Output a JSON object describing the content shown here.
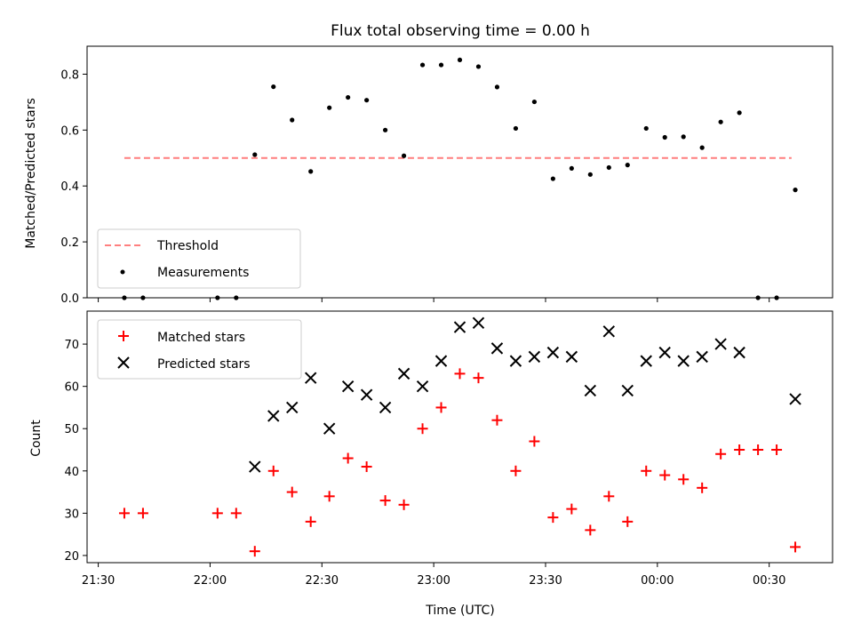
{
  "chart_data": [
    {
      "type": "scatter",
      "title": "Flux total observing time = 0.00 h",
      "xlabel": "",
      "ylabel": "Matched/Predicted stars",
      "ylim": [
        0,
        0.9
      ],
      "yticks": [
        "0.0",
        "0.2",
        "0.4",
        "0.6",
        "0.8"
      ],
      "x_time_range": [
        "21:27",
        "00:47"
      ],
      "legend": {
        "placement": "bottom-left",
        "entries": [
          "Threshold",
          "Measurements"
        ]
      },
      "threshold": {
        "name": "Threshold",
        "value": 0.5,
        "x_start": "21:37",
        "x_end": "00:36",
        "color": "#ff7f7f",
        "style": "dashed"
      },
      "series": [
        {
          "name": "Measurements",
          "color": "#000000",
          "marker": "dot",
          "points": [
            [
              "21:37",
              0.0
            ],
            [
              "21:42",
              0.0
            ],
            [
              "22:02",
              0.0
            ],
            [
              "22:07",
              0.0
            ],
            [
              "22:12",
              0.512
            ],
            [
              "22:17",
              0.755
            ],
            [
              "22:22",
              0.636
            ],
            [
              "22:27",
              0.452
            ],
            [
              "22:32",
              0.68
            ],
            [
              "22:37",
              0.717
            ],
            [
              "22:42",
              0.707
            ],
            [
              "22:47",
              0.6
            ],
            [
              "22:52",
              0.508
            ],
            [
              "22:57",
              0.833
            ],
            [
              "23:02",
              0.833
            ],
            [
              "23:07",
              0.851
            ],
            [
              "23:12",
              0.827
            ],
            [
              "23:17",
              0.754
            ],
            [
              "23:22",
              0.606
            ],
            [
              "23:27",
              0.701
            ],
            [
              "23:32",
              0.426
            ],
            [
              "23:37",
              0.463
            ],
            [
              "23:42",
              0.441
            ],
            [
              "23:47",
              0.466
            ],
            [
              "23:52",
              0.475
            ],
            [
              "23:57",
              0.606
            ],
            [
              "00:02",
              0.574
            ],
            [
              "00:07",
              0.576
            ],
            [
              "00:12",
              0.537
            ],
            [
              "00:17",
              0.629
            ],
            [
              "00:22",
              0.662
            ],
            [
              "00:27",
              0.0
            ],
            [
              "00:32",
              0.0
            ],
            [
              "00:37",
              0.386
            ]
          ]
        }
      ]
    },
    {
      "type": "scatter",
      "title": "",
      "xlabel": "Time (UTC)",
      "ylabel": "Count",
      "ylim": [
        18.3,
        77.8
      ],
      "yticks": [
        "20",
        "30",
        "40",
        "50",
        "60",
        "70"
      ],
      "xticks": [
        "21:30",
        "22:00",
        "22:30",
        "23:00",
        "23:30",
        "00:00",
        "00:30"
      ],
      "x_time_range": [
        "21:27",
        "00:47"
      ],
      "legend": {
        "placement": "top-left",
        "entries": [
          "Matched stars",
          "Predicted stars"
        ]
      },
      "series": [
        {
          "name": "Matched stars",
          "color": "#ff0000",
          "marker": "plus",
          "points": [
            [
              "21:37",
              30
            ],
            [
              "21:42",
              30
            ],
            [
              "22:02",
              30
            ],
            [
              "22:07",
              30
            ],
            [
              "22:12",
              21
            ],
            [
              "22:17",
              40
            ],
            [
              "22:22",
              35
            ],
            [
              "22:27",
              28
            ],
            [
              "22:32",
              34
            ],
            [
              "22:37",
              43
            ],
            [
              "22:42",
              41
            ],
            [
              "22:47",
              33
            ],
            [
              "22:52",
              32
            ],
            [
              "22:57",
              50
            ],
            [
              "23:02",
              55
            ],
            [
              "23:07",
              63
            ],
            [
              "23:12",
              62
            ],
            [
              "23:17",
              52
            ],
            [
              "23:22",
              40
            ],
            [
              "23:27",
              47
            ],
            [
              "23:32",
              29
            ],
            [
              "23:37",
              31
            ],
            [
              "23:42",
              26
            ],
            [
              "23:47",
              34
            ],
            [
              "23:52",
              28
            ],
            [
              "23:57",
              40
            ],
            [
              "00:02",
              39
            ],
            [
              "00:07",
              38
            ],
            [
              "00:12",
              36
            ],
            [
              "00:17",
              44
            ],
            [
              "00:22",
              45
            ],
            [
              "00:27",
              45
            ],
            [
              "00:32",
              45
            ],
            [
              "00:37",
              22
            ]
          ]
        },
        {
          "name": "Predicted stars",
          "color": "#000000",
          "marker": "x",
          "points": [
            [
              "22:12",
              41
            ],
            [
              "22:17",
              53
            ],
            [
              "22:22",
              55
            ],
            [
              "22:27",
              62
            ],
            [
              "22:32",
              50
            ],
            [
              "22:37",
              60
            ],
            [
              "22:42",
              58
            ],
            [
              "22:47",
              55
            ],
            [
              "22:52",
              63
            ],
            [
              "22:57",
              60
            ],
            [
              "23:02",
              66
            ],
            [
              "23:07",
              74
            ],
            [
              "23:12",
              75
            ],
            [
              "23:17",
              69
            ],
            [
              "23:22",
              66
            ],
            [
              "23:27",
              67
            ],
            [
              "23:32",
              68
            ],
            [
              "23:37",
              67
            ],
            [
              "23:42",
              59
            ],
            [
              "23:47",
              73
            ],
            [
              "23:52",
              59
            ],
            [
              "23:57",
              66
            ],
            [
              "00:02",
              68
            ],
            [
              "00:07",
              66
            ],
            [
              "00:12",
              67
            ],
            [
              "00:17",
              70
            ],
            [
              "00:22",
              68
            ],
            [
              "00:37",
              57
            ]
          ]
        }
      ]
    }
  ]
}
